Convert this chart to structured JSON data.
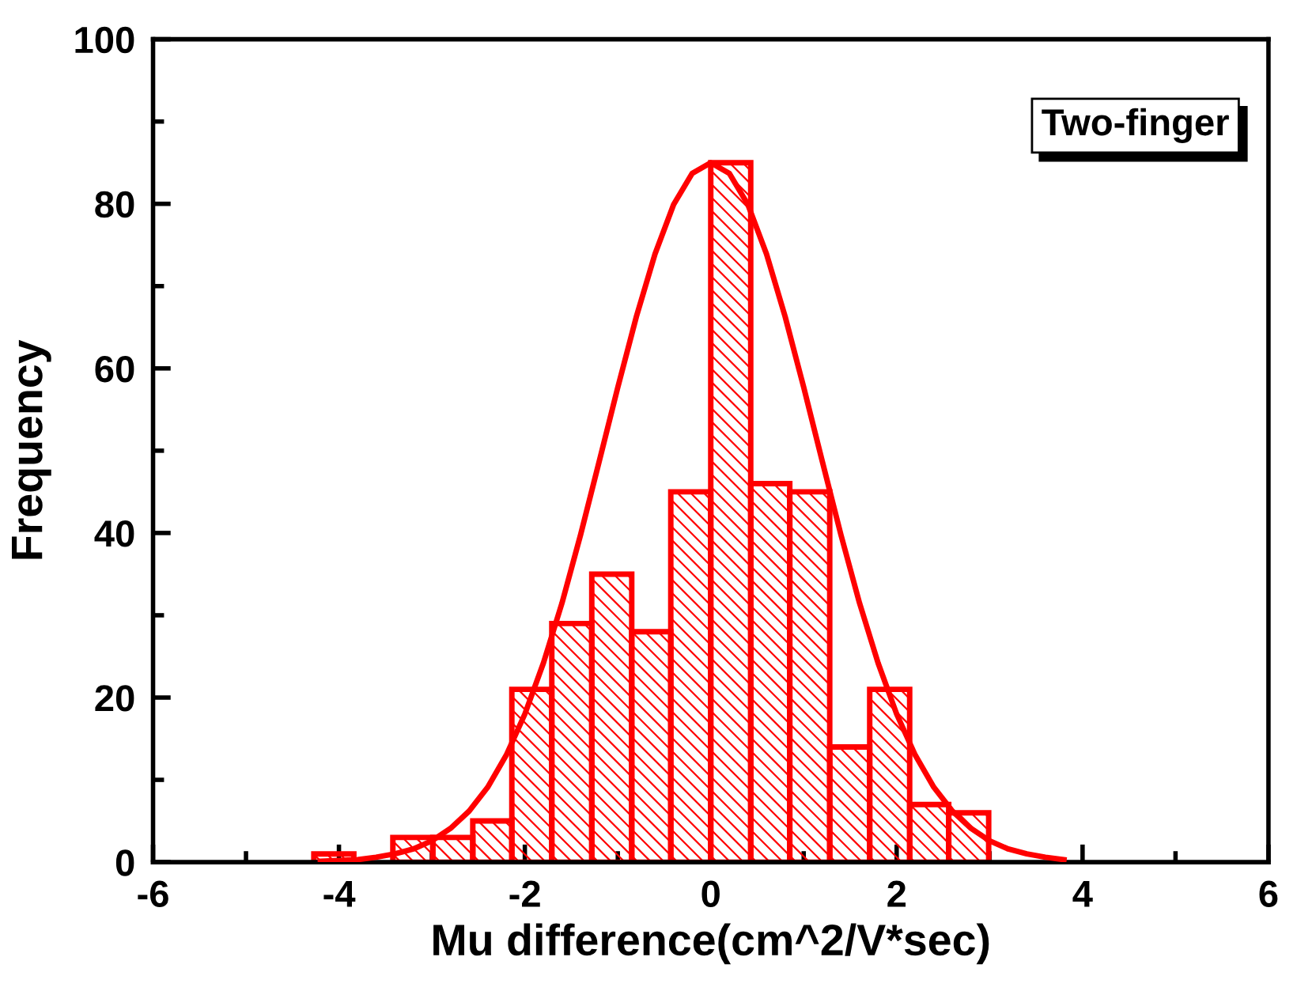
{
  "chart_data": {
    "type": "histogram",
    "xlabel": "Mu difference(cm^2/V*sec)",
    "ylabel": "Frequency",
    "annotations": [
      "Two-finger"
    ],
    "xlim": [
      -6,
      6
    ],
    "xticks": [
      -6,
      {
        "value": -5,
        "label": null
      },
      -4,
      {
        "value": -3,
        "label": null
      },
      -2,
      {
        "value": -1,
        "label": null
      },
      0,
      {
        "value": 1,
        "label": null
      },
      2,
      {
        "value": 3,
        "label": null
      },
      4,
      {
        "value": 5,
        "label": null
      },
      6
    ],
    "ylim": [
      0,
      100
    ],
    "yticks": [
      0,
      {
        "value": 10,
        "label": null
      },
      20,
      {
        "value": 30,
        "label": null
      },
      40,
      {
        "value": 50,
        "label": null
      },
      60,
      {
        "value": 70,
        "label": null
      },
      80,
      {
        "value": 90,
        "label": null
      },
      100
    ],
    "grid": false,
    "series": [
      {
        "color": "#ff0000",
        "bins": [
          -4.27,
          -3.84,
          -3.42,
          -2.99,
          -2.56,
          -2.14,
          -1.71,
          -1.28,
          -0.85,
          -0.43,
          0,
          0.43,
          0.85,
          1.28,
          1.71,
          2.14,
          2.56,
          2.99
        ],
        "values": [
          1,
          0,
          3,
          3,
          5,
          21,
          29,
          35,
          28,
          45,
          85,
          46,
          45,
          14,
          21,
          7,
          6
        ]
      },
      {
        "type": "line",
        "color": "#ff0000",
        "x": [
          -4.2,
          -4.0,
          -3.8,
          -3.6,
          -3.4,
          -3.2,
          -3.0,
          -2.8,
          -2.6,
          -2.4,
          -2.2,
          -2.0,
          -1.8,
          -1.6,
          -1.4,
          -1.2,
          -1.0,
          -0.8,
          -0.6,
          -0.4,
          -0.2,
          0,
          0.2,
          0.4,
          0.6,
          0.8,
          1.0,
          1.2,
          1.4,
          1.6,
          1.8,
          2.0,
          2.2,
          2.4,
          2.6,
          2.8,
          3.0,
          3.2,
          3.4,
          3.6,
          3.8
        ],
        "values": [
          0.1,
          0.2,
          0.3,
          0.6,
          1.0,
          1.6,
          2.6,
          4.1,
          6.2,
          9.1,
          13.0,
          18.0,
          24.2,
          31.5,
          39.8,
          48.7,
          57.7,
          66.3,
          73.9,
          79.9,
          83.7,
          85,
          83.7,
          79.9,
          73.9,
          66.3,
          57.7,
          48.7,
          39.8,
          31.5,
          24.2,
          18.0,
          13.0,
          9.1,
          6.2,
          4.1,
          2.6,
          1.6,
          1.0,
          0.6,
          0.3
        ]
      }
    ]
  }
}
